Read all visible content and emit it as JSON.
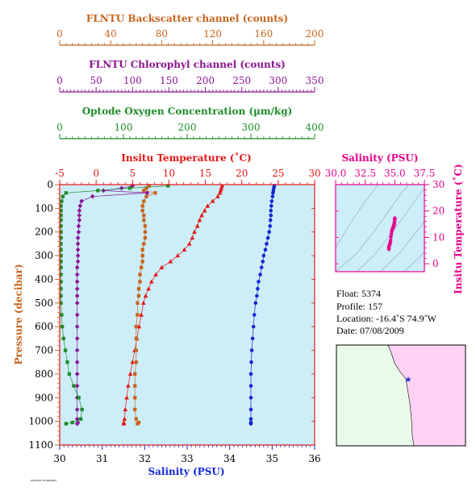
{
  "colors": {
    "backscatter": "#c8641e",
    "chlorophyl": "#8c1496",
    "oxygen": "#1e8c28",
    "temperature": "#e61414",
    "salinity": "#1428d2",
    "ts": "#e6008c",
    "plot_bg": "#cdeef8",
    "land": "#ffd2f5",
    "ocean": "#eafaea"
  },
  "top_axes": {
    "backscatter": {
      "title": "FLNTU Backscatter channel (counts)",
      "ticks": [
        "0",
        "40",
        "80",
        "120",
        "160",
        "200"
      ],
      "range": [
        0,
        200
      ]
    },
    "chlorophyl": {
      "title": "FLNTU Chlorophyl channel (counts)",
      "ticks": [
        "0",
        "50",
        "100",
        "150",
        "200",
        "250",
        "300",
        "350"
      ],
      "range": [
        0,
        350
      ]
    },
    "oxygen": {
      "title": "Optode Oxygen Concentration (µm/kg)",
      "ticks": [
        "0",
        "100",
        "200",
        "300",
        "400"
      ],
      "range": [
        0,
        400
      ]
    },
    "temperature": {
      "title": "Insitu Temperature (˚C)",
      "ticks": [
        "-5",
        "0",
        "5",
        "10",
        "15",
        "20",
        "25",
        "30"
      ],
      "range": [
        -5,
        30
      ]
    }
  },
  "ts_panel": {
    "title": "Salinity (PSU)",
    "xticks": [
      "30.0",
      "32.5",
      "35.0",
      "37.5"
    ],
    "xrange": [
      30,
      37.5
    ],
    "yticks": [
      "0",
      "10",
      "20",
      "30"
    ],
    "yrange": [
      -3,
      30
    ],
    "ylabel": "Insitu Temperature (˚C)"
  },
  "info": {
    "float": "Float:  5374",
    "profile": "Profile:  157",
    "location": "Location:  -16.4˚S  74.9˚W",
    "date": "Date:  07/08/2009"
  },
  "footer_note": "PROFILE SUMMARY",
  "chart_data": {
    "type": "line",
    "xlabel": "Salinity (PSU)",
    "ylabel": "Pressure (decibar)",
    "xlim": [
      30,
      36
    ],
    "ylim": [
      1100,
      0
    ],
    "xticks": [
      "30",
      "31",
      "32",
      "33",
      "34",
      "35",
      "36"
    ],
    "yticks": [
      "0",
      "100",
      "200",
      "300",
      "400",
      "500",
      "600",
      "700",
      "800",
      "900",
      "1000",
      "1100"
    ],
    "series": [
      {
        "name": "Salinity",
        "axis": "salinity",
        "marker": "circle",
        "x": [
          35.05,
          35.04,
          35.03,
          35.02,
          35.01,
          34.99,
          34.98,
          34.97,
          34.97,
          34.96,
          34.95,
          34.93,
          34.9,
          34.87,
          34.84,
          34.8,
          34.78,
          34.75,
          34.72,
          34.68,
          34.66,
          34.64,
          34.61,
          34.58,
          34.56,
          34.54,
          34.52,
          34.51,
          34.5,
          34.5,
          34.5,
          34.5,
          34.5,
          34.5,
          34.5
        ],
        "y": [
          5,
          15,
          25,
          35,
          50,
          70,
          90,
          110,
          130,
          150,
          175,
          200,
          225,
          250,
          275,
          300,
          325,
          350,
          380,
          410,
          440,
          470,
          500,
          550,
          600,
          650,
          700,
          750,
          800,
          850,
          900,
          950,
          990,
          1005,
          1010
        ]
      },
      {
        "name": "Temperature",
        "axis": "temperature",
        "marker": "triangle",
        "x": [
          17.3,
          17.2,
          17.1,
          17.0,
          16.7,
          16.0,
          15.3,
          14.9,
          14.5,
          14.2,
          13.9,
          13.5,
          13.2,
          12.8,
          12.1,
          11.2,
          10.2,
          9.0,
          8.2,
          7.6,
          7.2,
          6.8,
          6.5,
          6.2,
          5.9,
          5.6,
          5.3,
          5.0,
          4.7,
          4.4,
          4.2,
          4.0,
          3.9,
          3.8,
          3.8
        ],
        "y": [
          5,
          15,
          25,
          35,
          50,
          70,
          90,
          110,
          130,
          150,
          175,
          200,
          225,
          250,
          275,
          300,
          325,
          350,
          380,
          410,
          440,
          470,
          500,
          550,
          600,
          650,
          700,
          750,
          800,
          850,
          900,
          950,
          990,
          1005,
          1010
        ]
      },
      {
        "name": "Backscatter",
        "axis": "backscatter",
        "marker": "square",
        "x": [
          70,
          68,
          66,
          75,
          68,
          66,
          65,
          65,
          66,
          66,
          67,
          67,
          67,
          66,
          65,
          65,
          65,
          64,
          63,
          63,
          62,
          62,
          61,
          61,
          60,
          60,
          60,
          60,
          59,
          59,
          59,
          59,
          60,
          62,
          61
        ],
        "y": [
          5,
          15,
          25,
          35,
          50,
          70,
          90,
          110,
          130,
          150,
          175,
          200,
          225,
          250,
          275,
          300,
          325,
          350,
          380,
          410,
          440,
          470,
          500,
          550,
          600,
          650,
          700,
          750,
          800,
          850,
          900,
          950,
          990,
          1005,
          1010
        ]
      },
      {
        "name": "Chlorophyl",
        "axis": "chlorophyl",
        "marker": "diamond",
        "x": [
          100,
          85,
          60,
          120,
          45,
          30,
          28,
          27,
          27,
          27,
          26,
          26,
          25,
          25,
          25,
          25,
          25,
          24,
          24,
          24,
          24,
          24,
          24,
          24,
          24,
          24,
          24,
          24,
          24,
          24,
          24,
          24,
          24,
          25,
          24
        ],
        "y": [
          5,
          15,
          25,
          35,
          50,
          70,
          90,
          110,
          130,
          150,
          175,
          200,
          225,
          250,
          275,
          300,
          325,
          350,
          380,
          410,
          440,
          470,
          500,
          550,
          600,
          650,
          700,
          750,
          800,
          850,
          900,
          950,
          990,
          1005,
          1010
        ]
      },
      {
        "name": "Oxygen",
        "axis": "oxygen",
        "marker": "square",
        "x": [
          170,
          110,
          60,
          10,
          5,
          3,
          2,
          2,
          2,
          2,
          2,
          2,
          2,
          2,
          2,
          2,
          2,
          2,
          2,
          2,
          2,
          2,
          2,
          3,
          4,
          6,
          9,
          12,
          15,
          22,
          30,
          35,
          33,
          20,
          10
        ],
        "y": [
          5,
          15,
          25,
          35,
          50,
          70,
          90,
          110,
          130,
          150,
          175,
          200,
          225,
          250,
          275,
          300,
          325,
          350,
          380,
          410,
          440,
          470,
          500,
          550,
          600,
          650,
          700,
          750,
          800,
          850,
          900,
          950,
          990,
          1005,
          1010
        ]
      }
    ],
    "ts_points": {
      "salinity": [
        35.0,
        35.0,
        34.99,
        34.98,
        34.96,
        34.94,
        34.92,
        34.9,
        34.87,
        34.84,
        34.8,
        34.77,
        34.74,
        34.71,
        34.68,
        34.65,
        34.62,
        34.59,
        34.56,
        34.53,
        34.5,
        34.5,
        34.5
      ],
      "temperature": [
        17.3,
        17.1,
        16.7,
        16.0,
        15.3,
        14.9,
        14.5,
        14.2,
        13.9,
        13.5,
        13.2,
        12.8,
        12.1,
        11.2,
        10.2,
        9.0,
        8.2,
        7.6,
        7.2,
        6.8,
        6.5,
        6.0,
        5.5
      ]
    }
  }
}
